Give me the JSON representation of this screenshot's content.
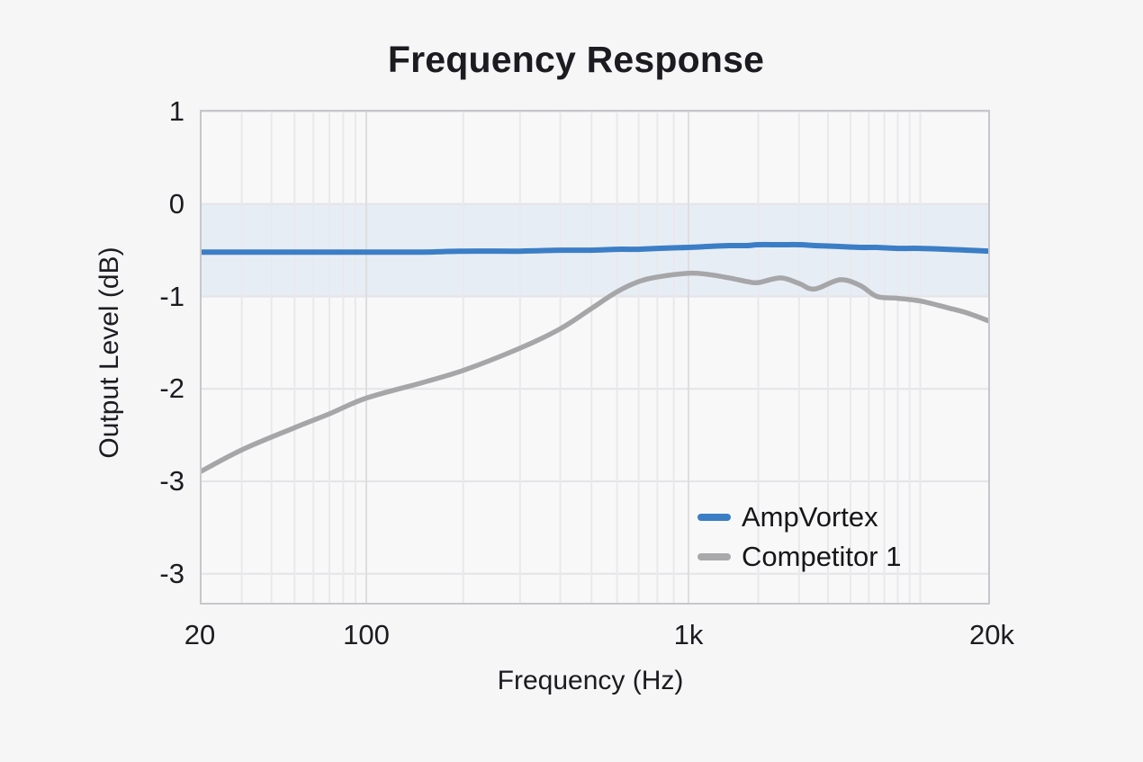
{
  "title": "Frequency Response",
  "chart_data": {
    "type": "line",
    "title": "Frequency Response",
    "xlabel": "Frequency (Hz)",
    "ylabel": "Output Level (dB)",
    "x_scale": "log",
    "x_range": [
      20,
      20000
    ],
    "x_tick_values": [
      20,
      100,
      1000,
      20000
    ],
    "x_tick_labels": [
      "20",
      "100",
      "1k",
      "20k"
    ],
    "x_minor_gridlines": [
      30,
      40,
      50,
      60,
      70,
      80,
      90,
      200,
      300,
      400,
      500,
      600,
      700,
      800,
      900,
      2000,
      3000,
      4000,
      5000,
      6000,
      7000,
      8000,
      9000,
      10000
    ],
    "y_tick_labels": [
      "1",
      "0",
      "-1",
      "-2",
      "-3",
      "-3"
    ],
    "ylim": [
      -3.35,
      1.02
    ],
    "grid": true,
    "legend_position": "inside-bottom-right",
    "tolerance_band": {
      "from_db": 0,
      "to_db": -1,
      "color": "#e7edf5"
    },
    "x": [
      20,
      30,
      50,
      70,
      100,
      150,
      200,
      300,
      400,
      500,
      600,
      700,
      800,
      1000,
      1200,
      1500,
      1800,
      2000,
      2500,
      3000,
      3500,
      4500,
      5500,
      6500,
      8000,
      10000,
      13000,
      16000,
      20000
    ],
    "series": [
      {
        "name": "AmpVortex",
        "color": "#3b7ec6",
        "values": [
          -0.52,
          -0.52,
          -0.52,
          -0.52,
          -0.52,
          -0.52,
          -0.51,
          -0.51,
          -0.5,
          -0.5,
          -0.49,
          -0.49,
          -0.48,
          -0.47,
          -0.46,
          -0.45,
          -0.45,
          -0.44,
          -0.44,
          -0.44,
          -0.45,
          -0.46,
          -0.47,
          -0.47,
          -0.48,
          -0.48,
          -0.49,
          -0.5,
          -0.51
        ]
      },
      {
        "name": "Competitor 1",
        "color": "#a6a6a8",
        "values": [
          -2.9,
          -2.66,
          -2.42,
          -2.27,
          -2.1,
          -1.93,
          -1.8,
          -1.56,
          -1.35,
          -1.13,
          -0.95,
          -0.84,
          -0.79,
          -0.75,
          -0.76,
          -0.8,
          -0.84,
          -0.85,
          -0.8,
          -0.86,
          -0.92,
          -0.82,
          -0.88,
          -1.0,
          -1.02,
          -1.05,
          -1.12,
          -1.18,
          -1.27
        ]
      }
    ]
  },
  "colors": {
    "page_background": "#f6f6f7",
    "plot_background": "#f8f8f9",
    "plot_border": "#c7c7cb",
    "gridline": "#e4e4e7",
    "band": "#e7edf5",
    "ampvortex_line": "#3b7ec6",
    "competitor_line": "#a6a6a8",
    "text": "#1b1b20"
  }
}
